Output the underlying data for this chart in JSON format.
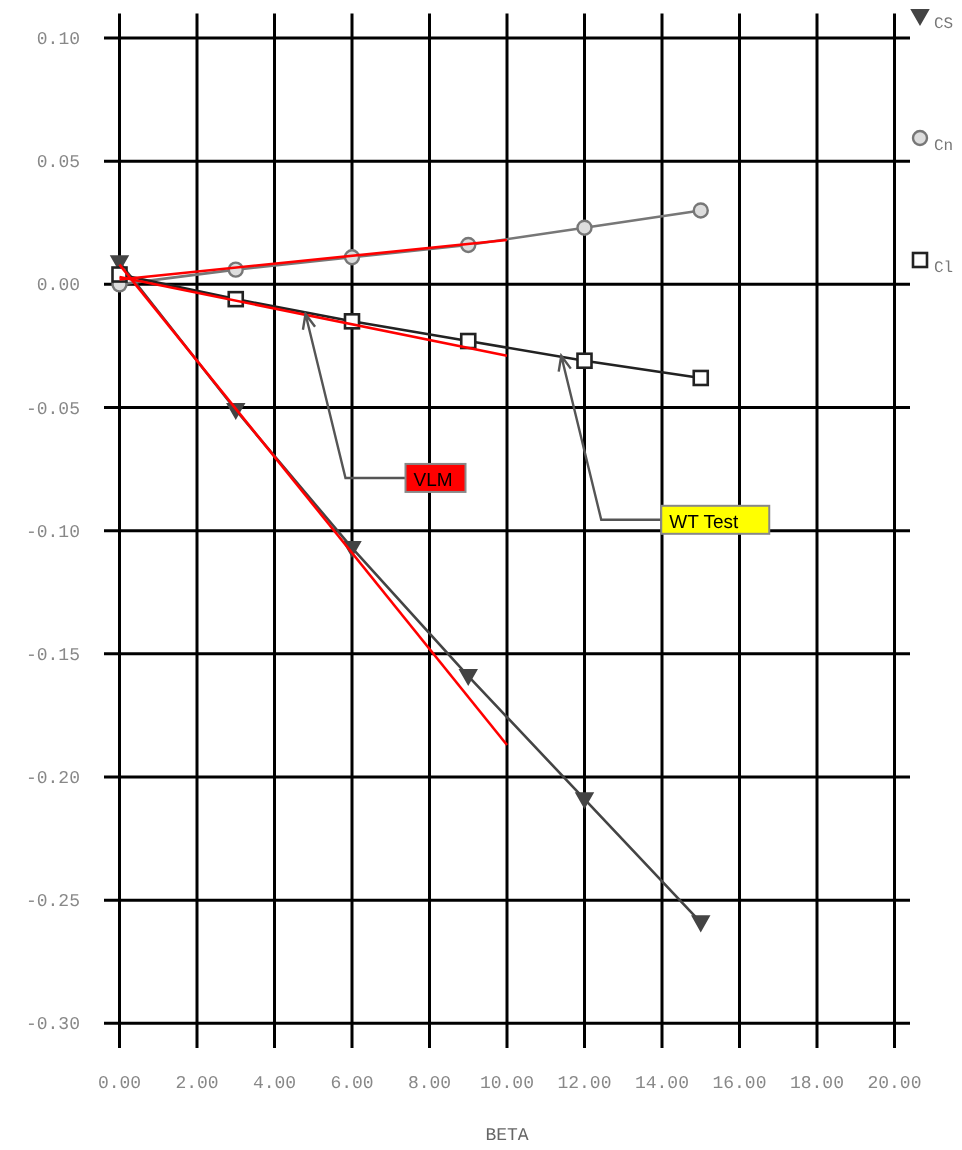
{
  "chart_data": {
    "type": "line",
    "xlabel": "BETA",
    "xlim": [
      -0.4,
      20.4
    ],
    "ylim": [
      -0.31,
      0.11
    ],
    "xticks": [
      {
        "value": 0,
        "label": "0.00"
      },
      {
        "value": 2,
        "label": "2.00"
      },
      {
        "value": 4,
        "label": "4.00"
      },
      {
        "value": 6,
        "label": "6.00"
      },
      {
        "value": 8,
        "label": "8.00"
      },
      {
        "value": 10,
        "label": "10.00"
      },
      {
        "value": 12,
        "label": "12.00"
      },
      {
        "value": 14,
        "label": "14.00"
      },
      {
        "value": 16,
        "label": "16.00"
      },
      {
        "value": 18,
        "label": "18.00"
      },
      {
        "value": 20,
        "label": "20.00"
      }
    ],
    "yticks": [
      {
        "value": 0.1,
        "label": "0.10"
      },
      {
        "value": 0.05,
        "label": "0.05"
      },
      {
        "value": 0,
        "label": "0.00"
      },
      {
        "value": -0.05,
        "label": "-0.05"
      },
      {
        "value": -0.1,
        "label": "-0.10"
      },
      {
        "value": -0.15,
        "label": "-0.15"
      },
      {
        "value": -0.2,
        "label": "-0.20"
      },
      {
        "value": -0.25,
        "label": "-0.25"
      },
      {
        "value": -0.3,
        "label": "-0.30"
      }
    ],
    "grid": true,
    "legend": "top right",
    "series": [
      {
        "name": "CS",
        "color": "#444444",
        "marker": "triangle",
        "x": [
          0,
          3,
          6,
          9,
          12,
          15
        ],
        "values": [
          0.009,
          -0.051,
          -0.107,
          -0.159,
          -0.209,
          -0.259
        ]
      },
      {
        "name": "Cn",
        "color": "#777777",
        "marker": "circle",
        "x": [
          0,
          3,
          6,
          9,
          12,
          15
        ],
        "values": [
          0.0,
          0.006,
          0.011,
          0.016,
          0.023,
          0.03
        ]
      },
      {
        "name": "Cl",
        "color": "#222222",
        "marker": "square",
        "x": [
          0,
          3,
          6,
          9,
          12,
          15
        ],
        "values": [
          0.004,
          -0.006,
          -0.015,
          -0.023,
          -0.031,
          -0.038
        ]
      },
      {
        "color": "#ff0000",
        "marker": "none",
        "x": [
          0,
          10
        ],
        "values": [
          0.008,
          -0.187
        ]
      },
      {
        "color": "#ff0000",
        "marker": "none",
        "x": [
          0,
          10
        ],
        "values": [
          0.002,
          0.018
        ]
      },
      {
        "color": "#ff0000",
        "marker": "none",
        "x": [
          0,
          10
        ],
        "values": [
          0.003,
          -0.029
        ]
      }
    ],
    "annotations": [
      {
        "text": "VLM",
        "x": 4.8,
        "y": -0.012
      },
      {
        "text": "WT Test",
        "x": 11.4,
        "y": -0.029
      }
    ]
  }
}
